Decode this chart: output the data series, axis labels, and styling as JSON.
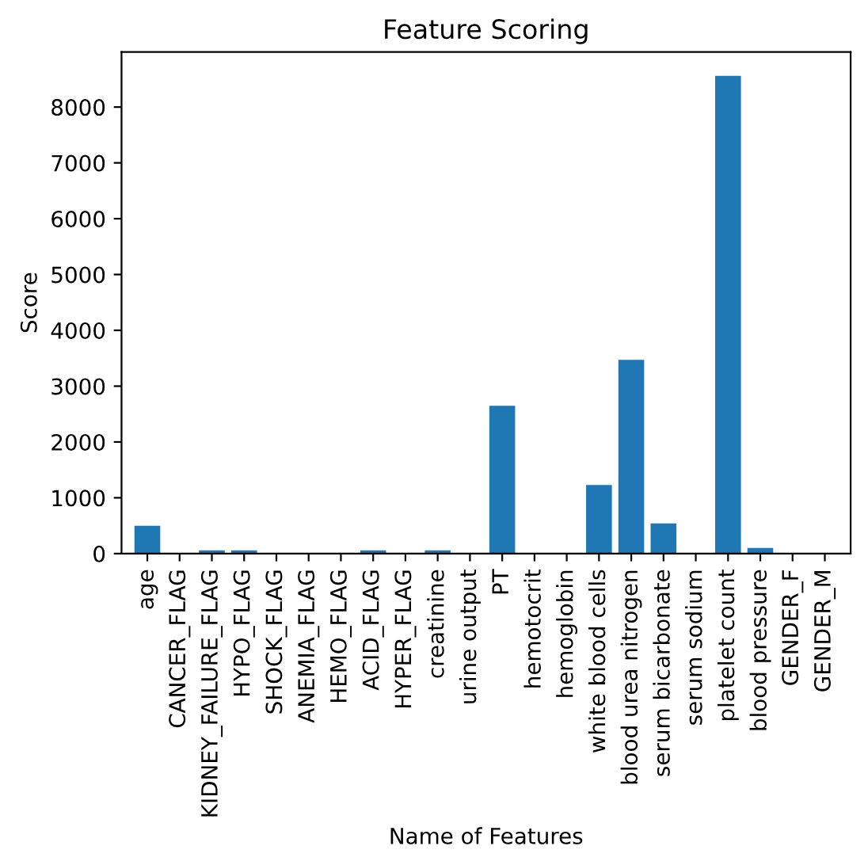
{
  "chart_data": {
    "type": "bar",
    "title": "Feature Scoring",
    "xlabel": "Name of Features",
    "ylabel": "Score",
    "categories": [
      "age",
      "CANCER_FLAG",
      "KIDNEY_FAILURE_FLAG",
      "HYPO_FLAG",
      "SHOCK_FLAG",
      "ANEMIA_FLAG",
      "HEMO_FLAG",
      "ACID_FLAG",
      "HYPER_FLAG",
      "creatinine",
      "urine output",
      "PT",
      "hemotocrit",
      "hemoglobin",
      "white blood cells",
      "blood urea nitrogen",
      "serum bicarbonate",
      "serum sodium",
      "platelet count",
      "blood pressure",
      "GENDER_F",
      "GENDER_M"
    ],
    "values": [
      500,
      0,
      60,
      60,
      0,
      0,
      0,
      60,
      0,
      60,
      0,
      2650,
      0,
      0,
      1230,
      3470,
      540,
      0,
      8560,
      100,
      0,
      0
    ],
    "color": "#1f77b4",
    "ylim": [
      0,
      8988
    ],
    "yticks": [
      0,
      1000,
      2000,
      3000,
      4000,
      5000,
      6000,
      7000,
      8000
    ],
    "grid": false,
    "legend": false
  }
}
